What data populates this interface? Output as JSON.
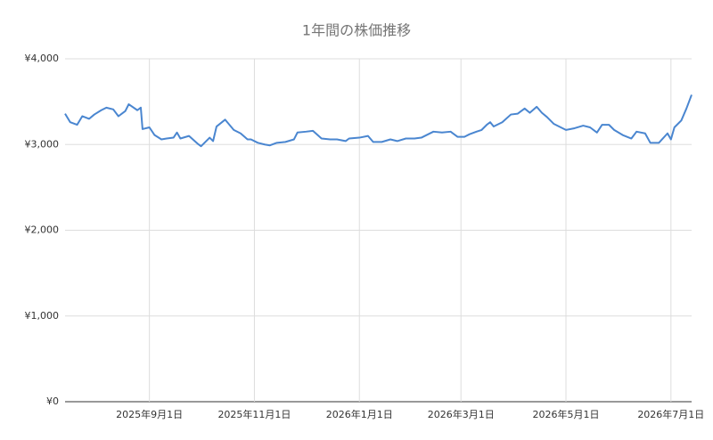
{
  "chart_data": {
    "type": "line",
    "title": "1年間の株価推移",
    "x": [
      "2025-07-14",
      "2025-07-17",
      "2025-07-21",
      "2025-07-24",
      "2025-07-28",
      "2025-07-31",
      "2025-08-04",
      "2025-08-07",
      "2025-08-11",
      "2025-08-14",
      "2025-08-18",
      "2025-08-20",
      "2025-08-25",
      "2025-08-27",
      "2025-08-28",
      "2025-09-01",
      "2025-09-04",
      "2025-09-08",
      "2025-09-11",
      "2025-09-15",
      "2025-09-17",
      "2025-09-19",
      "2025-09-24",
      "2025-09-29",
      "2025-10-01",
      "2025-10-06",
      "2025-10-08",
      "2025-10-10",
      "2025-10-15",
      "2025-10-20",
      "2025-10-24",
      "2025-10-28",
      "2025-10-30",
      "2025-11-03",
      "2025-11-07",
      "2025-11-10",
      "2025-11-14",
      "2025-11-19",
      "2025-11-24",
      "2025-11-26",
      "2025-12-01",
      "2025-12-05",
      "2025-12-10",
      "2025-12-15",
      "2025-12-19",
      "2025-12-24",
      "2025-12-26",
      "2026-01-01",
      "2026-01-06",
      "2026-01-09",
      "2026-01-14",
      "2026-01-19",
      "2026-01-23",
      "2026-01-28",
      "2026-02-02",
      "2026-02-06",
      "2026-02-10",
      "2026-02-13",
      "2026-02-18",
      "2026-02-23",
      "2026-02-27",
      "2026-03-03",
      "2026-03-06",
      "2026-03-10",
      "2026-03-13",
      "2026-03-16",
      "2026-03-18",
      "2026-03-20",
      "2026-03-25",
      "2026-03-30",
      "2026-04-03",
      "2026-04-07",
      "2026-04-10",
      "2026-04-14",
      "2026-04-17",
      "2026-04-20",
      "2026-04-24",
      "2026-04-28",
      "2026-05-01",
      "2026-05-06",
      "2026-05-11",
      "2026-05-15",
      "2026-05-19",
      "2026-05-22",
      "2026-05-26",
      "2026-05-29",
      "2026-06-03",
      "2026-06-08",
      "2026-06-11",
      "2026-06-16",
      "2026-06-19",
      "2026-06-24",
      "2026-06-29",
      "2026-07-01",
      "2026-07-03",
      "2026-07-07",
      "2026-07-10",
      "2026-07-13"
    ],
    "series": [
      {
        "color": "#4a86d0",
        "values": [
          3360,
          3260,
          3230,
          3330,
          3300,
          3350,
          3400,
          3430,
          3410,
          3330,
          3390,
          3470,
          3400,
          3430,
          3180,
          3200,
          3110,
          3060,
          3070,
          3080,
          3140,
          3070,
          3100,
          3010,
          2980,
          3080,
          3040,
          3210,
          3290,
          3170,
          3130,
          3060,
          3060,
          3020,
          3000,
          2990,
          3020,
          3030,
          3060,
          3140,
          3150,
          3160,
          3070,
          3060,
          3060,
          3040,
          3070,
          3080,
          3100,
          3030,
          3030,
          3060,
          3040,
          3070,
          3070,
          3080,
          3120,
          3150,
          3140,
          3150,
          3090,
          3090,
          3120,
          3150,
          3170,
          3230,
          3260,
          3210,
          3260,
          3350,
          3360,
          3420,
          3370,
          3440,
          3370,
          3320,
          3240,
          3200,
          3170,
          3190,
          3220,
          3200,
          3140,
          3230,
          3230,
          3170,
          3110,
          3070,
          3150,
          3130,
          3020,
          3020,
          3130,
          3060,
          3200,
          3280,
          3420,
          3580
        ]
      }
    ],
    "xlim": [
      "2025-07-14",
      "2026-07-13"
    ],
    "xticks": [
      {
        "value": "2025-09-01",
        "label": "2025年9月1日"
      },
      {
        "value": "2025-11-01",
        "label": "2025年11月1日"
      },
      {
        "value": "2026-01-01",
        "label": "2026年1月1日"
      },
      {
        "value": "2026-03-01",
        "label": "2026年3月1日"
      },
      {
        "value": "2026-05-01",
        "label": "2026年5月1日"
      },
      {
        "value": "2026-07-01",
        "label": "2026年7月1日"
      }
    ],
    "ylim": [
      0,
      4000
    ],
    "yticks": [
      {
        "value": 0,
        "label": "¥0"
      },
      {
        "value": 1000,
        "label": "¥1,000"
      },
      {
        "value": 2000,
        "label": "¥2,000"
      },
      {
        "value": 3000,
        "label": "¥3,000"
      },
      {
        "value": 4000,
        "label": "¥4,000"
      }
    ],
    "grid": true
  }
}
